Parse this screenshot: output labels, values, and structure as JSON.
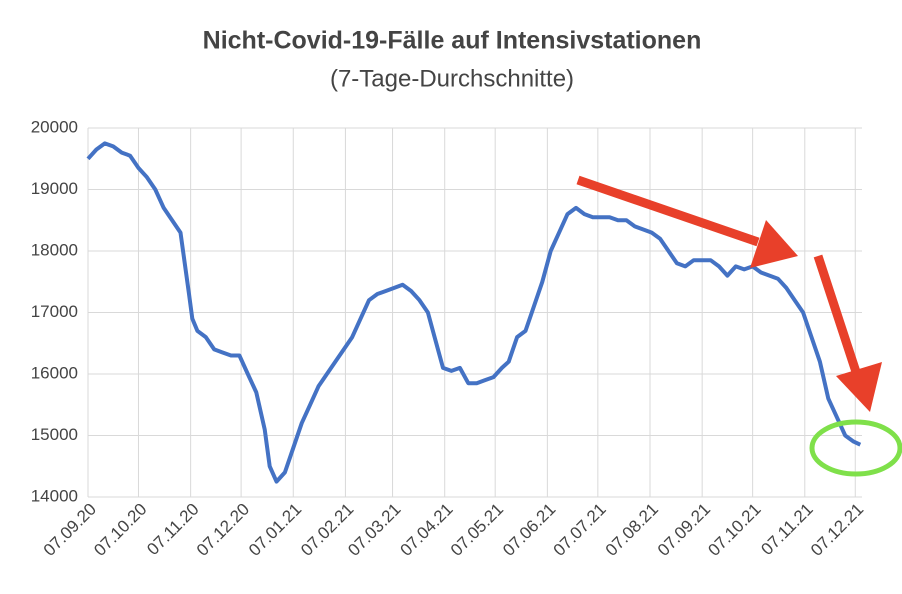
{
  "chart_data": {
    "type": "line",
    "title": "Nicht-Covid-19-Fälle auf Intensivstationen",
    "subtitle": "(7-Tage-Durchschnitte)",
    "x": [
      0,
      5,
      10,
      15,
      20,
      25,
      30,
      35,
      40,
      45,
      50,
      55,
      60,
      62,
      65,
      70,
      75,
      80,
      85,
      90,
      95,
      100,
      105,
      108,
      112,
      117,
      122,
      127,
      132,
      137,
      142,
      147,
      152,
      157,
      162,
      167,
      172,
      177,
      182,
      187,
      192,
      197,
      202,
      206,
      211,
      216,
      221,
      226,
      231,
      236,
      241,
      246,
      250,
      255,
      260,
      265,
      270,
      275,
      280,
      285,
      290,
      295,
      300,
      305,
      310,
      315,
      320,
      325,
      330,
      335,
      340,
      345,
      350,
      355,
      360,
      365,
      370,
      375,
      380,
      385,
      390,
      395,
      400,
      405,
      410,
      415,
      420,
      425,
      430,
      435,
      440,
      445,
      450,
      455,
      459
    ],
    "values": [
      19500,
      19650,
      19750,
      19700,
      19600,
      19550,
      19350,
      19200,
      19000,
      18700,
      18500,
      18300,
      17300,
      16900,
      16700,
      16600,
      16400,
      16350,
      16300,
      16300,
      16000,
      15700,
      15100,
      14500,
      14250,
      14400,
      14800,
      15200,
      15500,
      15800,
      16000,
      16200,
      16400,
      16600,
      16900,
      17200,
      17300,
      17350,
      17400,
      17450,
      17350,
      17200,
      17000,
      16600,
      16100,
      16050,
      16100,
      15850,
      15850,
      15900,
      15950,
      16100,
      16200,
      16600,
      16700,
      17100,
      17500,
      18000,
      18300,
      18600,
      18700,
      18600,
      18550,
      18550,
      18550,
      18500,
      18500,
      18400,
      18350,
      18300,
      18200,
      18000,
      17800,
      17750,
      17850,
      17850,
      17850,
      17750,
      17600,
      17750,
      17700,
      17750,
      17650,
      17600,
      17550,
      17400,
      17200,
      17000,
      16600,
      16200,
      15600,
      15300,
      15000,
      14900,
      14850
    ],
    "color": "#4472c4",
    "xlim": [
      0,
      460
    ],
    "xticks": [
      {
        "value": 0,
        "label": "07.09.20"
      },
      {
        "value": 30,
        "label": "07.10.20"
      },
      {
        "value": 61,
        "label": "07.11.20"
      },
      {
        "value": 91,
        "label": "07.12.20"
      },
      {
        "value": 122,
        "label": "07.01.21"
      },
      {
        "value": 153,
        "label": "07.02.21"
      },
      {
        "value": 181,
        "label": "07.03.21"
      },
      {
        "value": 212,
        "label": "07.04.21"
      },
      {
        "value": 242,
        "label": "07.05.21"
      },
      {
        "value": 273,
        "label": "07.06.21"
      },
      {
        "value": 303,
        "label": "07.07.21"
      },
      {
        "value": 334,
        "label": "07.08.21"
      },
      {
        "value": 365,
        "label": "07.09.21"
      },
      {
        "value": 395,
        "label": "07.10.21"
      },
      {
        "value": 426,
        "label": "07.11.21"
      },
      {
        "value": 456,
        "label": "07.12.21"
      }
    ],
    "ylim": [
      14000,
      20000
    ],
    "yticks": [
      14000,
      15000,
      16000,
      17000,
      18000,
      19000,
      20000
    ],
    "grid": true
  }
}
